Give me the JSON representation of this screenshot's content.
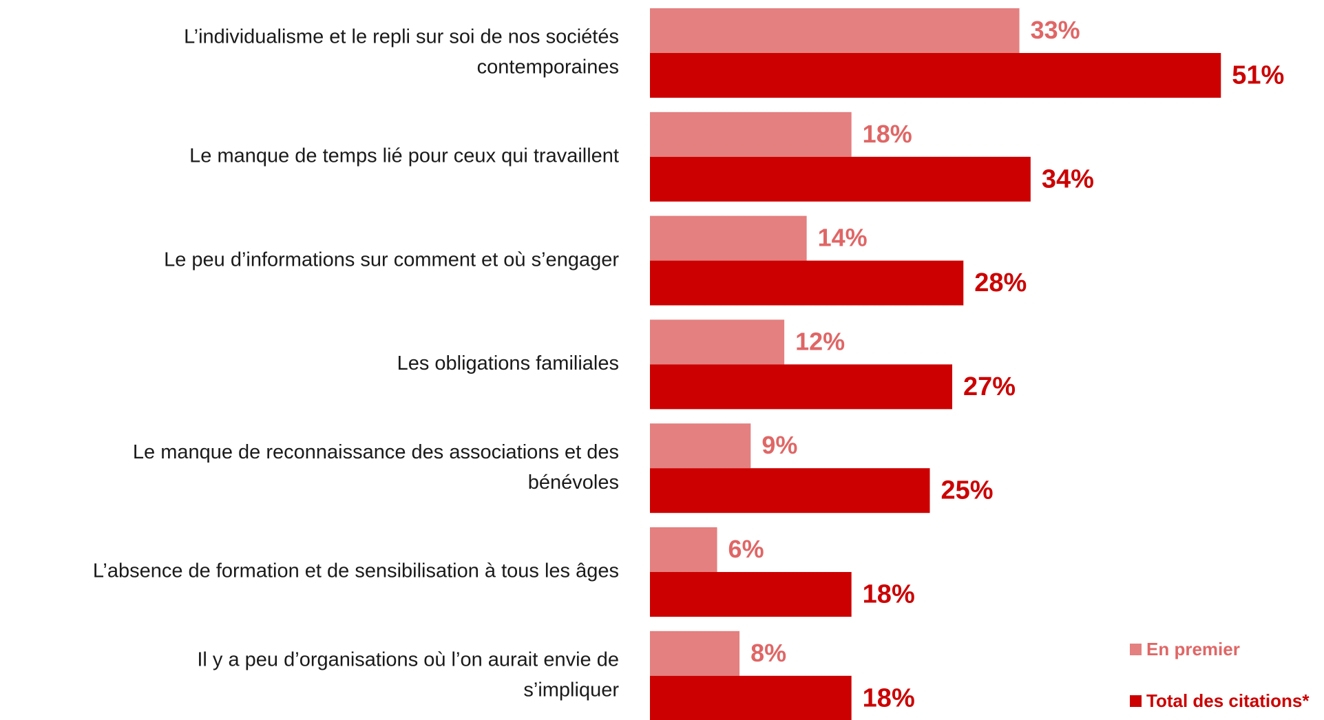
{
  "chart_data": {
    "type": "bar",
    "orientation": "horizontal",
    "categories": [
      [
        "L’individualisme et le repli sur soi de nos sociétés",
        "contemporaines"
      ],
      [
        "Le manque de temps lié pour ceux qui travaillent"
      ],
      [
        "Le peu d’informations sur comment et où s’engager"
      ],
      [
        "Les obligations familiales"
      ],
      [
        "Le manque de reconnaissance des associations et des",
        "bénévoles"
      ],
      [
        "L’absence de formation et de sensibilisation à tous les âges"
      ],
      [
        "Il y a peu d’organisations où l’on aurait envie de",
        "s’impliquer"
      ]
    ],
    "series": [
      {
        "name": "En premier",
        "color": "#e48080",
        "label_color": "#e06666",
        "values": [
          33,
          18,
          14,
          12,
          9,
          6,
          8
        ],
        "value_labels": [
          "33%",
          "18%",
          "14%",
          "12%",
          "9%",
          "6%",
          "8%"
        ]
      },
      {
        "name": "Total des citations*",
        "color": "#cc0000",
        "label_color": "#cc0000",
        "values": [
          51,
          34,
          28,
          27,
          25,
          18,
          18
        ],
        "value_labels": [
          "51%",
          "34%",
          "28%",
          "27%",
          "25%",
          "18%",
          "18%"
        ]
      }
    ],
    "legend": "bottom-right"
  }
}
